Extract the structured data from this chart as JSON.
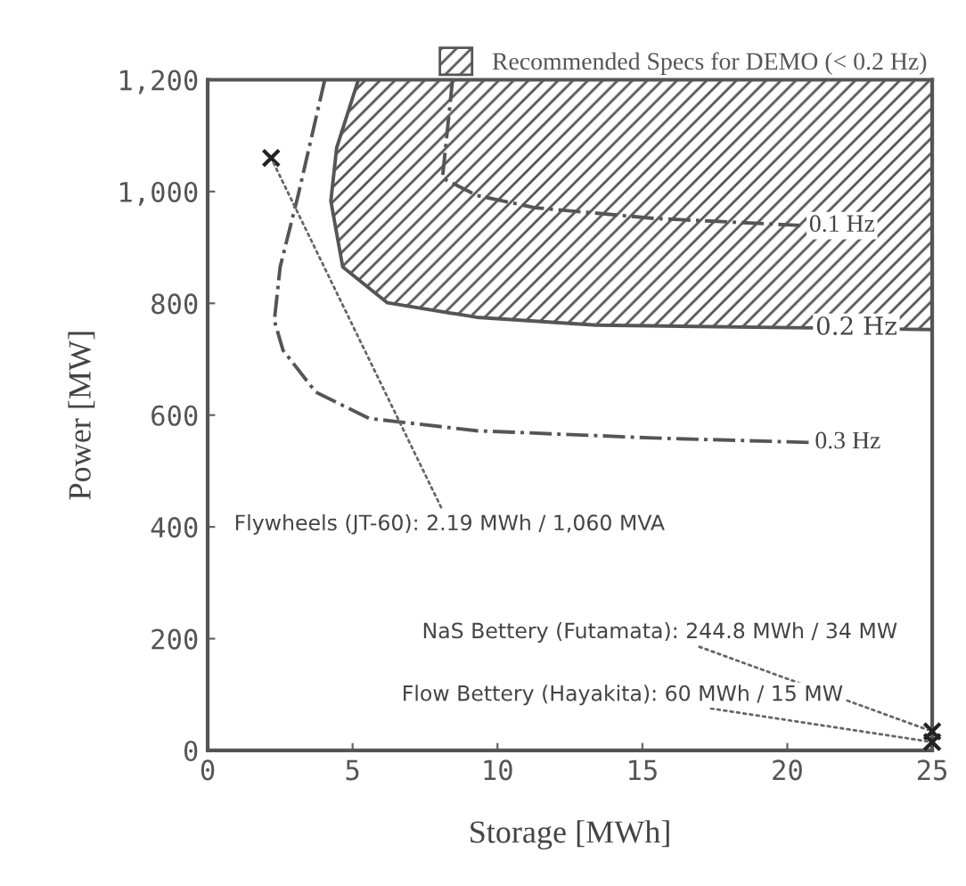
{
  "chart_data": {
    "type": "line",
    "xlabel": "Storage [MWh]",
    "ylabel": "Power [MW]",
    "xlim": [
      0,
      25
    ],
    "xticks": [
      0,
      5,
      10,
      15,
      20,
      25
    ],
    "ylim": [
      0,
      1200
    ],
    "yticks": [
      0,
      200,
      400,
      600,
      800,
      {
        "value": 1000,
        "label": "1,000"
      },
      {
        "value": 1200,
        "label": "1,200"
      }
    ],
    "grid": false,
    "legend": "top right",
    "series": [
      {
        "name": "Recommended Specs for DEMO (< 0.2 Hz)",
        "type": "area",
        "color": "#555555",
        "x": [
          5.2,
          4.45,
          4.25,
          4.66,
          6.2,
          9.28,
          13.4,
          20.8,
          25,
          25
        ],
        "values": [
          1200,
          1078,
          983,
          865,
          801,
          775,
          761,
          756,
          753,
          1200
        ]
      },
      {
        "name": "0.1 Hz",
        "line_style": "dashed",
        "color": "#555555",
        "x": [
          8.45,
          8.1,
          9.28,
          11.3,
          15.4,
          20.6
        ],
        "values": [
          1200,
          1024,
          993,
          971,
          952,
          939
        ]
      },
      {
        "name": "0.3 Hz",
        "line_style": "dashed",
        "color": "#555555",
        "x": [
          4.04,
          3.12,
          2.5,
          2.3,
          2.6,
          3.73,
          5.58,
          9.28,
          15.4,
          20.8
        ],
        "values": [
          1200,
          993,
          865,
          769,
          716,
          641,
          594,
          572,
          559,
          551
        ]
      },
      {
        "type": "scatter",
        "marker": "cross",
        "color": "#222222",
        "x": [
          2.19,
          25,
          25
        ],
        "values": [
          1060,
          34,
          15
        ]
      }
    ],
    "annotations": [
      {
        "text": "0.2 Hz",
        "x": 20.8,
        "y": 756
      },
      {
        "text": "Flywheels (JT-60): 2.19 MWh / 1,060 MVA",
        "x": 2.19,
        "y": 1060
      },
      {
        "text": "NaS Bettery (Futamata): 244.8 MWh / 34 MW",
        "x": 25,
        "y": 34
      },
      {
        "text": "Flow Bettery (Hayakita): 60 MWh / 15 MW",
        "x": 25,
        "y": 15
      }
    ]
  }
}
